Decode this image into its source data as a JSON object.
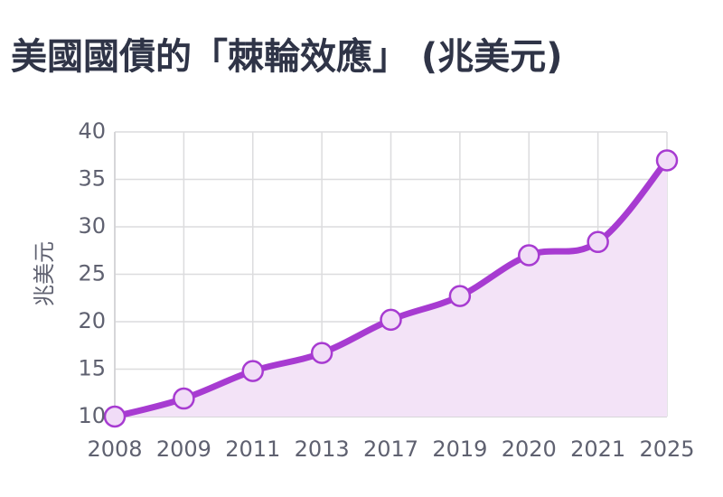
{
  "chart_data": {
    "type": "line",
    "title": "美國國債的「棘輪效應」 (兆美元)",
    "xlabel": "",
    "ylabel": "兆美元",
    "categories": [
      "2008",
      "2009",
      "2011",
      "2013",
      "2017",
      "2019",
      "2020",
      "2021",
      "2025"
    ],
    "series": [
      {
        "values": [
          10.0,
          11.9,
          14.8,
          16.7,
          20.2,
          22.7,
          27.0,
          28.4,
          37.0
        ]
      }
    ],
    "ylim": [
      10,
      40
    ],
    "yticks": [
      10,
      15,
      20,
      25,
      30,
      35,
      40
    ],
    "grid": true,
    "area_fill": true,
    "line_color": "#a73bd1",
    "fill_color": "#f3e3f7"
  }
}
